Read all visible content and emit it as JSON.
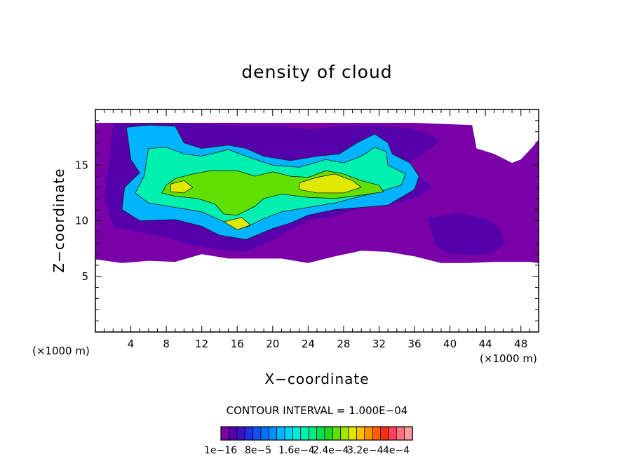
{
  "chart_data": {
    "type": "heatmap",
    "title": "density of cloud",
    "xlabel": "X−coordinate",
    "ylabel": "Z−coordinate",
    "x_unit": "(×1000 m)",
    "y_unit": "(×1000 m)",
    "xlim": [
      0,
      50
    ],
    "ylim": [
      0,
      20
    ],
    "x_ticks": [
      "4",
      "8",
      "12",
      "16",
      "20",
      "24",
      "28",
      "32",
      "36",
      "40",
      "44",
      "48"
    ],
    "y_ticks": [
      "5",
      "10",
      "15"
    ],
    "contour_interval": "CONTOUR INTERVAL = 1.000E−04",
    "colorbar": {
      "labels": [
        "1e−16",
        "8e−5",
        "1.6e−4",
        "2.4e−4",
        "3.2e−4",
        "4e−4"
      ],
      "colors": [
        "#7a00a8",
        "#5500aa",
        "#3a10c8",
        "#2030e0",
        "#1050f0",
        "#0070ff",
        "#0090ff",
        "#00b4ff",
        "#00d4f0",
        "#00e8d8",
        "#00f0b0",
        "#00ec80",
        "#00e050",
        "#20d820",
        "#60e000",
        "#a0e800",
        "#e0e800",
        "#ffc000",
        "#ff9000",
        "#ff6000",
        "#ff3010",
        "#ff4060",
        "#ff7080",
        "#ff9aa0"
      ]
    },
    "regions": [
      {
        "level": 0.0,
        "points": [
          [
            0.3,
            6.5
          ],
          [
            3,
            6.2
          ],
          [
            6,
            6.4
          ],
          [
            9,
            6.3
          ],
          [
            12,
            7
          ],
          [
            15,
            6.6
          ],
          [
            18,
            6.6
          ],
          [
            21,
            6.6
          ],
          [
            24,
            6.2
          ],
          [
            27,
            6.8
          ],
          [
            30,
            7.3
          ],
          [
            33,
            7.2
          ],
          [
            36,
            6.8
          ],
          [
            39,
            6.2
          ],
          [
            42,
            6.2
          ],
          [
            45,
            6.3
          ],
          [
            49,
            6.3
          ],
          [
            50,
            6.2
          ],
          [
            50,
            17.3
          ],
          [
            49.5,
            16.8
          ],
          [
            48,
            15.5
          ],
          [
            47,
            15.2
          ],
          [
            45,
            16
          ],
          [
            43,
            16.5
          ],
          [
            42.5,
            18.6
          ],
          [
            36,
            18.8
          ],
          [
            27,
            18.8
          ],
          [
            18,
            18.8
          ],
          [
            9,
            18.8
          ],
          [
            0,
            18.8
          ],
          [
            0,
            6.5
          ]
        ]
      },
      {
        "level": 0.03,
        "points": [
          [
            2,
            18.7
          ],
          [
            9,
            18.8
          ],
          [
            15,
            18.6
          ],
          [
            21,
            18.5
          ],
          [
            24,
            18.2
          ],
          [
            29,
            18.6
          ],
          [
            33,
            18.5
          ],
          [
            36,
            18.2
          ],
          [
            39,
            17.3
          ],
          [
            37,
            16
          ],
          [
            35,
            15
          ],
          [
            38,
            13
          ],
          [
            36,
            12
          ],
          [
            33,
            11.4
          ],
          [
            30,
            11.2
          ],
          [
            27,
            10.4
          ],
          [
            24,
            10
          ],
          [
            22,
            9.2
          ],
          [
            20,
            8.3
          ],
          [
            17,
            7.2
          ],
          [
            14,
            7.4
          ],
          [
            11,
            7.8
          ],
          [
            8,
            8.5
          ],
          [
            5,
            9
          ],
          [
            2,
            9.5
          ],
          [
            1,
            12
          ],
          [
            1.5,
            15
          ],
          [
            2,
            18.7
          ]
        ]
      },
      {
        "level": 0.05,
        "points": [
          [
            37.5,
            10.2
          ],
          [
            41,
            10.7
          ],
          [
            44,
            10.2
          ],
          [
            45.5,
            9.4
          ],
          [
            46.2,
            8
          ],
          [
            45,
            7.1
          ],
          [
            43,
            6.9
          ],
          [
            40,
            7
          ],
          [
            38.3,
            7.8
          ],
          [
            37.5,
            10.2
          ]
        ]
      },
      {
        "level": 0.3,
        "points": [
          [
            3.5,
            18.4
          ],
          [
            6,
            18.6
          ],
          [
            9,
            18.5
          ],
          [
            10,
            17
          ],
          [
            12,
            16.5
          ],
          [
            15,
            16.8
          ],
          [
            17,
            16.5
          ],
          [
            19,
            15.8
          ],
          [
            22,
            15.4
          ],
          [
            25,
            15.8
          ],
          [
            27.5,
            16
          ],
          [
            29.5,
            17
          ],
          [
            31.5,
            17.8
          ],
          [
            33,
            17
          ],
          [
            33.5,
            16
          ],
          [
            35.5,
            15.2
          ],
          [
            36.5,
            14
          ],
          [
            36,
            12.8
          ],
          [
            33,
            11.4
          ],
          [
            30,
            11.2
          ],
          [
            27,
            11
          ],
          [
            24,
            10.5
          ],
          [
            22,
            9.8
          ],
          [
            20,
            9.3
          ],
          [
            17,
            8.3
          ],
          [
            14,
            8.7
          ],
          [
            12,
            9.5
          ],
          [
            9,
            10.1
          ],
          [
            5,
            10
          ],
          [
            3,
            11
          ],
          [
            3.3,
            13
          ],
          [
            5,
            14.3
          ],
          [
            4,
            15.5
          ],
          [
            3.5,
            18.4
          ]
        ]
      },
      {
        "level": 0.45,
        "points": [
          [
            6,
            16.5
          ],
          [
            8,
            16.6
          ],
          [
            10,
            16
          ],
          [
            12,
            15.8
          ],
          [
            15,
            16.4
          ],
          [
            17,
            15.8
          ],
          [
            20,
            15
          ],
          [
            23,
            14.8
          ],
          [
            26,
            15.5
          ],
          [
            28,
            15.2
          ],
          [
            30,
            15.8
          ],
          [
            31.5,
            16.6
          ],
          [
            32.8,
            16.2
          ],
          [
            33,
            15
          ],
          [
            35,
            14.2
          ],
          [
            34.5,
            13.2
          ],
          [
            32,
            12.6
          ],
          [
            29,
            12
          ],
          [
            27,
            11.6
          ],
          [
            24,
            11.2
          ],
          [
            21,
            10.8
          ],
          [
            19,
            10.2
          ],
          [
            17,
            9.4
          ],
          [
            14.5,
            9.9
          ],
          [
            12,
            10.8
          ],
          [
            9,
            11.2
          ],
          [
            6,
            11.6
          ],
          [
            4.5,
            12.5
          ],
          [
            5.5,
            14
          ],
          [
            6,
            16.5
          ]
        ]
      },
      {
        "level": 0.6,
        "points": [
          [
            9,
            13.8
          ],
          [
            11,
            14.2
          ],
          [
            13,
            14.5
          ],
          [
            16,
            14.5
          ],
          [
            18,
            14
          ],
          [
            20,
            14.4
          ],
          [
            22,
            14
          ],
          [
            24,
            13.9
          ],
          [
            26,
            14.5
          ],
          [
            28,
            14.2
          ],
          [
            30,
            13.6
          ],
          [
            32,
            13.2
          ],
          [
            32.5,
            12.6
          ],
          [
            30,
            12.3
          ],
          [
            27,
            12
          ],
          [
            24,
            12.1
          ],
          [
            21,
            12.4
          ],
          [
            19,
            12
          ],
          [
            18,
            11.3
          ],
          [
            16,
            10.5
          ],
          [
            14.5,
            10.6
          ],
          [
            13.5,
            11.5
          ],
          [
            11.5,
            12
          ],
          [
            9,
            12.2
          ],
          [
            7.5,
            12.5
          ],
          [
            8,
            13.2
          ],
          [
            9,
            13.8
          ]
        ]
      },
      {
        "level": 0.68,
        "points": [
          [
            23,
            13.4
          ],
          [
            25,
            13.9
          ],
          [
            27,
            14.2
          ],
          [
            29,
            13.6
          ],
          [
            30,
            13
          ],
          [
            28,
            12.5
          ],
          [
            25,
            12.5
          ],
          [
            23,
            12.8
          ],
          [
            23,
            13.4
          ]
        ]
      },
      {
        "level": 0.68,
        "points": [
          [
            8.5,
            13.3
          ],
          [
            10,
            13.6
          ],
          [
            11,
            13
          ],
          [
            10,
            12.5
          ],
          [
            8.5,
            12.6
          ],
          [
            8.5,
            13.3
          ]
        ]
      },
      {
        "level": 0.68,
        "points": [
          [
            14.5,
            9.9
          ],
          [
            16.5,
            10.3
          ],
          [
            17.5,
            9.6
          ],
          [
            16,
            9.2
          ],
          [
            14.5,
            9.9
          ]
        ]
      }
    ]
  }
}
